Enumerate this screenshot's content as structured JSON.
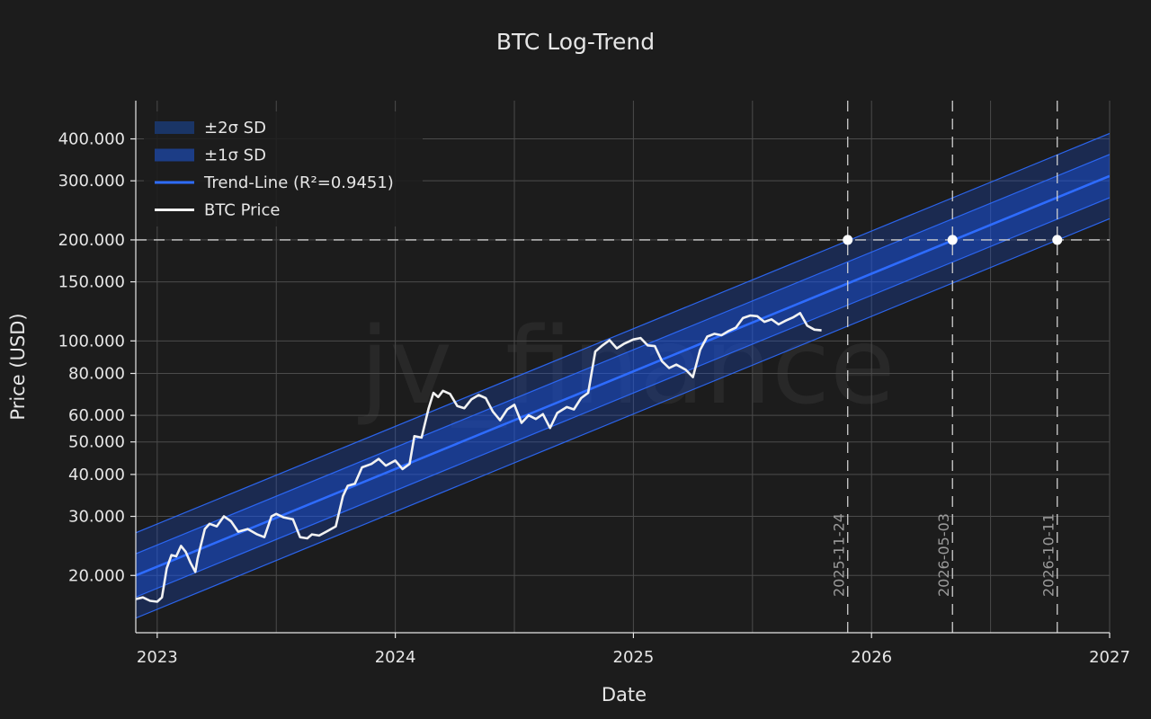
{
  "chart_data": {
    "type": "line",
    "title": "BTC Log-Trend",
    "xlabel": "Date",
    "ylabel": "Price (USD)",
    "y_scale": "log",
    "xlim": [
      2022.91,
      2027.0
    ],
    "ylim": [
      13500,
      520000
    ],
    "grid": true,
    "legend_position": "top-left",
    "watermark": "jv_finance",
    "x_ticks": [
      {
        "value": 2023,
        "label": "2023"
      },
      {
        "value": 2024,
        "label": "2024"
      },
      {
        "value": 2025,
        "label": "2025"
      },
      {
        "value": 2026,
        "label": "2026"
      },
      {
        "value": 2027,
        "label": "2027"
      }
    ],
    "y_ticks": [
      {
        "value": 20000,
        "label": "20.000"
      },
      {
        "value": 30000,
        "label": "30.000"
      },
      {
        "value": 40000,
        "label": "40.000"
      },
      {
        "value": 50000,
        "label": "50.000"
      },
      {
        "value": 60000,
        "label": "60.000"
      },
      {
        "value": 80000,
        "label": "80.000"
      },
      {
        "value": 100000,
        "label": "100.000"
      },
      {
        "value": 150000,
        "label": "150.000"
      },
      {
        "value": 200000,
        "label": "200.000"
      },
      {
        "value": 300000,
        "label": "300.000"
      },
      {
        "value": 400000,
        "label": "400.000"
      }
    ],
    "legend": [
      {
        "label": "±2σ SD",
        "kind": "band2"
      },
      {
        "label": "±1σ SD",
        "kind": "band1"
      },
      {
        "label": "Trend-Line (R²=0.9451)",
        "kind": "trend"
      },
      {
        "label": "BTC Price",
        "kind": "price"
      }
    ],
    "trend": {
      "label": "Trend-Line (R²=0.9451)",
      "r_squared": 0.9451,
      "start": {
        "x": 2022.91,
        "y": 20000
      },
      "end": {
        "x": 2027.0,
        "y": 310000
      },
      "sigma1_factor": 1.16,
      "sigma2_factor": 1.34
    },
    "target_level": {
      "value": 200000,
      "label": "200.000"
    },
    "crossings": [
      {
        "x": 2025.9,
        "label": "2025-11-24",
        "y": 200000
      },
      {
        "x": 2026.34,
        "label": "2026-05-03",
        "y": 200000
      },
      {
        "x": 2026.78,
        "label": "2026-10-11",
        "y": 200000
      }
    ],
    "series": [
      {
        "name": "BTC Price",
        "x": [
          2022.91,
          2022.94,
          2022.97,
          2023.0,
          2023.02,
          2023.04,
          2023.06,
          2023.08,
          2023.1,
          2023.12,
          2023.14,
          2023.16,
          2023.17,
          2023.2,
          2023.22,
          2023.25,
          2023.28,
          2023.31,
          2023.34,
          2023.38,
          2023.42,
          2023.45,
          2023.48,
          2023.5,
          2023.53,
          2023.57,
          2023.6,
          2023.63,
          2023.65,
          2023.68,
          2023.71,
          2023.75,
          2023.78,
          2023.8,
          2023.83,
          2023.86,
          2023.9,
          2023.93,
          2023.96,
          2024.0,
          2024.03,
          2024.06,
          2024.08,
          2024.11,
          2024.14,
          2024.16,
          2024.18,
          2024.2,
          2024.23,
          2024.26,
          2024.29,
          2024.32,
          2024.35,
          2024.38,
          2024.41,
          2024.44,
          2024.47,
          2024.5,
          2024.53,
          2024.56,
          2024.59,
          2024.62,
          2024.65,
          2024.68,
          2024.72,
          2024.75,
          2024.78,
          2024.81,
          2024.84,
          2024.87,
          2024.9,
          2024.93,
          2024.96,
          2025.0,
          2025.03,
          2025.06,
          2025.09,
          2025.12,
          2025.15,
          2025.18,
          2025.22,
          2025.25,
          2025.28,
          2025.31,
          2025.34,
          2025.37,
          2025.4,
          2025.43,
          2025.46,
          2025.49,
          2025.52,
          2025.55,
          2025.58,
          2025.61,
          2025.64,
          2025.67,
          2025.7,
          2025.73,
          2025.76,
          2025.79
        ],
        "y": [
          17000,
          17200,
          16800,
          16700,
          17200,
          21000,
          23000,
          22800,
          24500,
          23500,
          21800,
          20500,
          22500,
          27500,
          28500,
          28000,
          30000,
          29000,
          27000,
          27500,
          26500,
          26000,
          30000,
          30500,
          29800,
          29400,
          26000,
          25800,
          26500,
          26300,
          27000,
          28000,
          34500,
          37000,
          37500,
          42000,
          43000,
          44500,
          42500,
          44000,
          41500,
          43000,
          52000,
          51500,
          63000,
          70000,
          68000,
          71000,
          69500,
          64000,
          63000,
          67000,
          69000,
          67500,
          61500,
          58000,
          62500,
          64500,
          57000,
          60000,
          58500,
          60500,
          55000,
          61000,
          63500,
          62500,
          67500,
          70000,
          93000,
          97000,
          100500,
          95000,
          98000,
          101000,
          102000,
          97000,
          96500,
          87000,
          83000,
          85000,
          82000,
          78000,
          94000,
          103000,
          105000,
          104000,
          107000,
          109500,
          117000,
          119000,
          118500,
          114000,
          116000,
          112000,
          115000,
          117500,
          121000,
          111000,
          108000,
          107500
        ]
      }
    ]
  }
}
